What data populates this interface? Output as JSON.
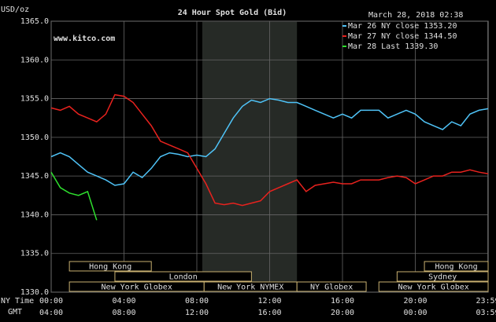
{
  "chart_data": {
    "type": "line",
    "title": "24 Hour Spot Gold (Bid)",
    "subtitle": "www.kitco.com",
    "date": "March 28, 2018 02:38",
    "y_label": "USD/oz",
    "x_row_labels": [
      "NY Time",
      "GMT"
    ],
    "x_gmt_labels": [
      "04:00",
      "08:00",
      "12:00",
      "16:00",
      "20:00",
      "00:00",
      "03:59"
    ],
    "x": [
      0,
      0.5,
      1,
      1.5,
      2,
      2.5,
      3,
      3.5,
      4,
      4.5,
      5,
      5.5,
      6,
      6.5,
      7,
      7.5,
      8,
      8.5,
      9,
      9.5,
      10,
      10.5,
      11,
      11.5,
      12,
      12.5,
      13,
      13.5,
      14,
      14.5,
      15,
      15.5,
      16,
      16.5,
      17,
      17.5,
      18,
      18.5,
      19,
      19.5,
      20,
      20.5,
      21,
      21.5,
      22,
      22.5,
      23,
      23.5,
      24
    ],
    "series": [
      {
        "name": "Mar 26 NY close 1353.20",
        "color": "#4fc3f7",
        "values": [
          1347.5,
          1348,
          1347.5,
          1346.5,
          1345.5,
          1345,
          1344.5,
          1343.8,
          1344,
          1345.5,
          1344.8,
          1346,
          1347.5,
          1348,
          1347.8,
          1347.5,
          1347.7,
          1347.5,
          1348.5,
          1350.5,
          1352.5,
          1354,
          1354.8,
          1354.5,
          1355,
          1354.8,
          1354.5,
          1354.5,
          1354,
          1353.5,
          1353,
          1352.5,
          1353,
          1352.5,
          1353.5,
          1353.5,
          1353.5,
          1352.5,
          1353,
          1353.5,
          1353,
          1352,
          1351.5,
          1351,
          1352,
          1351.5,
          1353,
          1353.5,
          1353.7
        ]
      },
      {
        "name": "Mar 27 NY close 1344.50",
        "color": "#e8221e",
        "values": [
          1353.8,
          1353.5,
          1354,
          1353,
          1352.5,
          1352,
          1353,
          1355.5,
          1355.3,
          1354.5,
          1353,
          1351.5,
          1349.5,
          1349,
          1348.5,
          1348,
          1346,
          1344,
          1341.5,
          1341.3,
          1341.5,
          1341.2,
          1341.5,
          1341.8,
          1343,
          1343.5,
          1344,
          1344.5,
          1343,
          1343.8,
          1344,
          1344.2,
          1344,
          1344,
          1344.5,
          1344.5,
          1344.5,
          1344.8,
          1345,
          1344.8,
          1344,
          1344.5,
          1345,
          1345,
          1345.5,
          1345.5,
          1345.8,
          1345.5,
          1345.3
        ]
      },
      {
        "name": "Mar 28 Last 1339.30",
        "color": "#2ee02e",
        "values": [
          1345.5,
          1343.5,
          1342.8,
          1342.5,
          1343,
          1339.3,
          null,
          null,
          null,
          null,
          null,
          null,
          null,
          null,
          null,
          null,
          null,
          null,
          null,
          null,
          null,
          null,
          null,
          null,
          null,
          null,
          null,
          null,
          null,
          null,
          null,
          null,
          null,
          null,
          null,
          null,
          null,
          null,
          null,
          null,
          null,
          null,
          null,
          null,
          null,
          null,
          null,
          null,
          null
        ]
      }
    ],
    "xlim": [
      0,
      24
    ],
    "xticks": [
      {
        "value": 0,
        "label": "00:00"
      },
      {
        "value": 4,
        "label": "04:00"
      },
      {
        "value": 8,
        "label": "08:00"
      },
      {
        "value": 12,
        "label": "12:00"
      },
      {
        "value": 16,
        "label": "16:00"
      },
      {
        "value": 20,
        "label": "20:00"
      },
      {
        "value": 23.98,
        "label": "23:59"
      }
    ],
    "ylim": [
      1330,
      1365
    ],
    "yticks": [
      {
        "value": 1330,
        "label": "1330.0"
      },
      {
        "value": 1335,
        "label": "1335.0"
      },
      {
        "value": 1340,
        "label": "1340.0"
      },
      {
        "value": 1345,
        "label": "1345.0"
      },
      {
        "value": 1350,
        "label": "1350.0"
      },
      {
        "value": 1355,
        "label": "1355.0"
      },
      {
        "value": 1360,
        "label": "1360.0"
      },
      {
        "value": 1365,
        "label": "1365.0"
      }
    ],
    "grid": true,
    "shaded_range": [
      8.3,
      13.5
    ],
    "sessions": [
      {
        "name": "Hong Kong",
        "start": 1,
        "end": 5.5
      },
      {
        "name": "Hong Kong",
        "start": 20.5,
        "end": 24
      },
      {
        "name": "London",
        "start": 3.5,
        "end": 11
      },
      {
        "name": "Sydney",
        "start": 19,
        "end": 24
      },
      {
        "name": "New York Globex",
        "start": 1,
        "end": 8.4
      },
      {
        "name": "New York NYMEX",
        "start": 8.4,
        "end": 13.5
      },
      {
        "name": "NY Globex",
        "start": 13.5,
        "end": 17.3
      },
      {
        "name": "New York Globex",
        "start": 18,
        "end": 24
      }
    ]
  }
}
